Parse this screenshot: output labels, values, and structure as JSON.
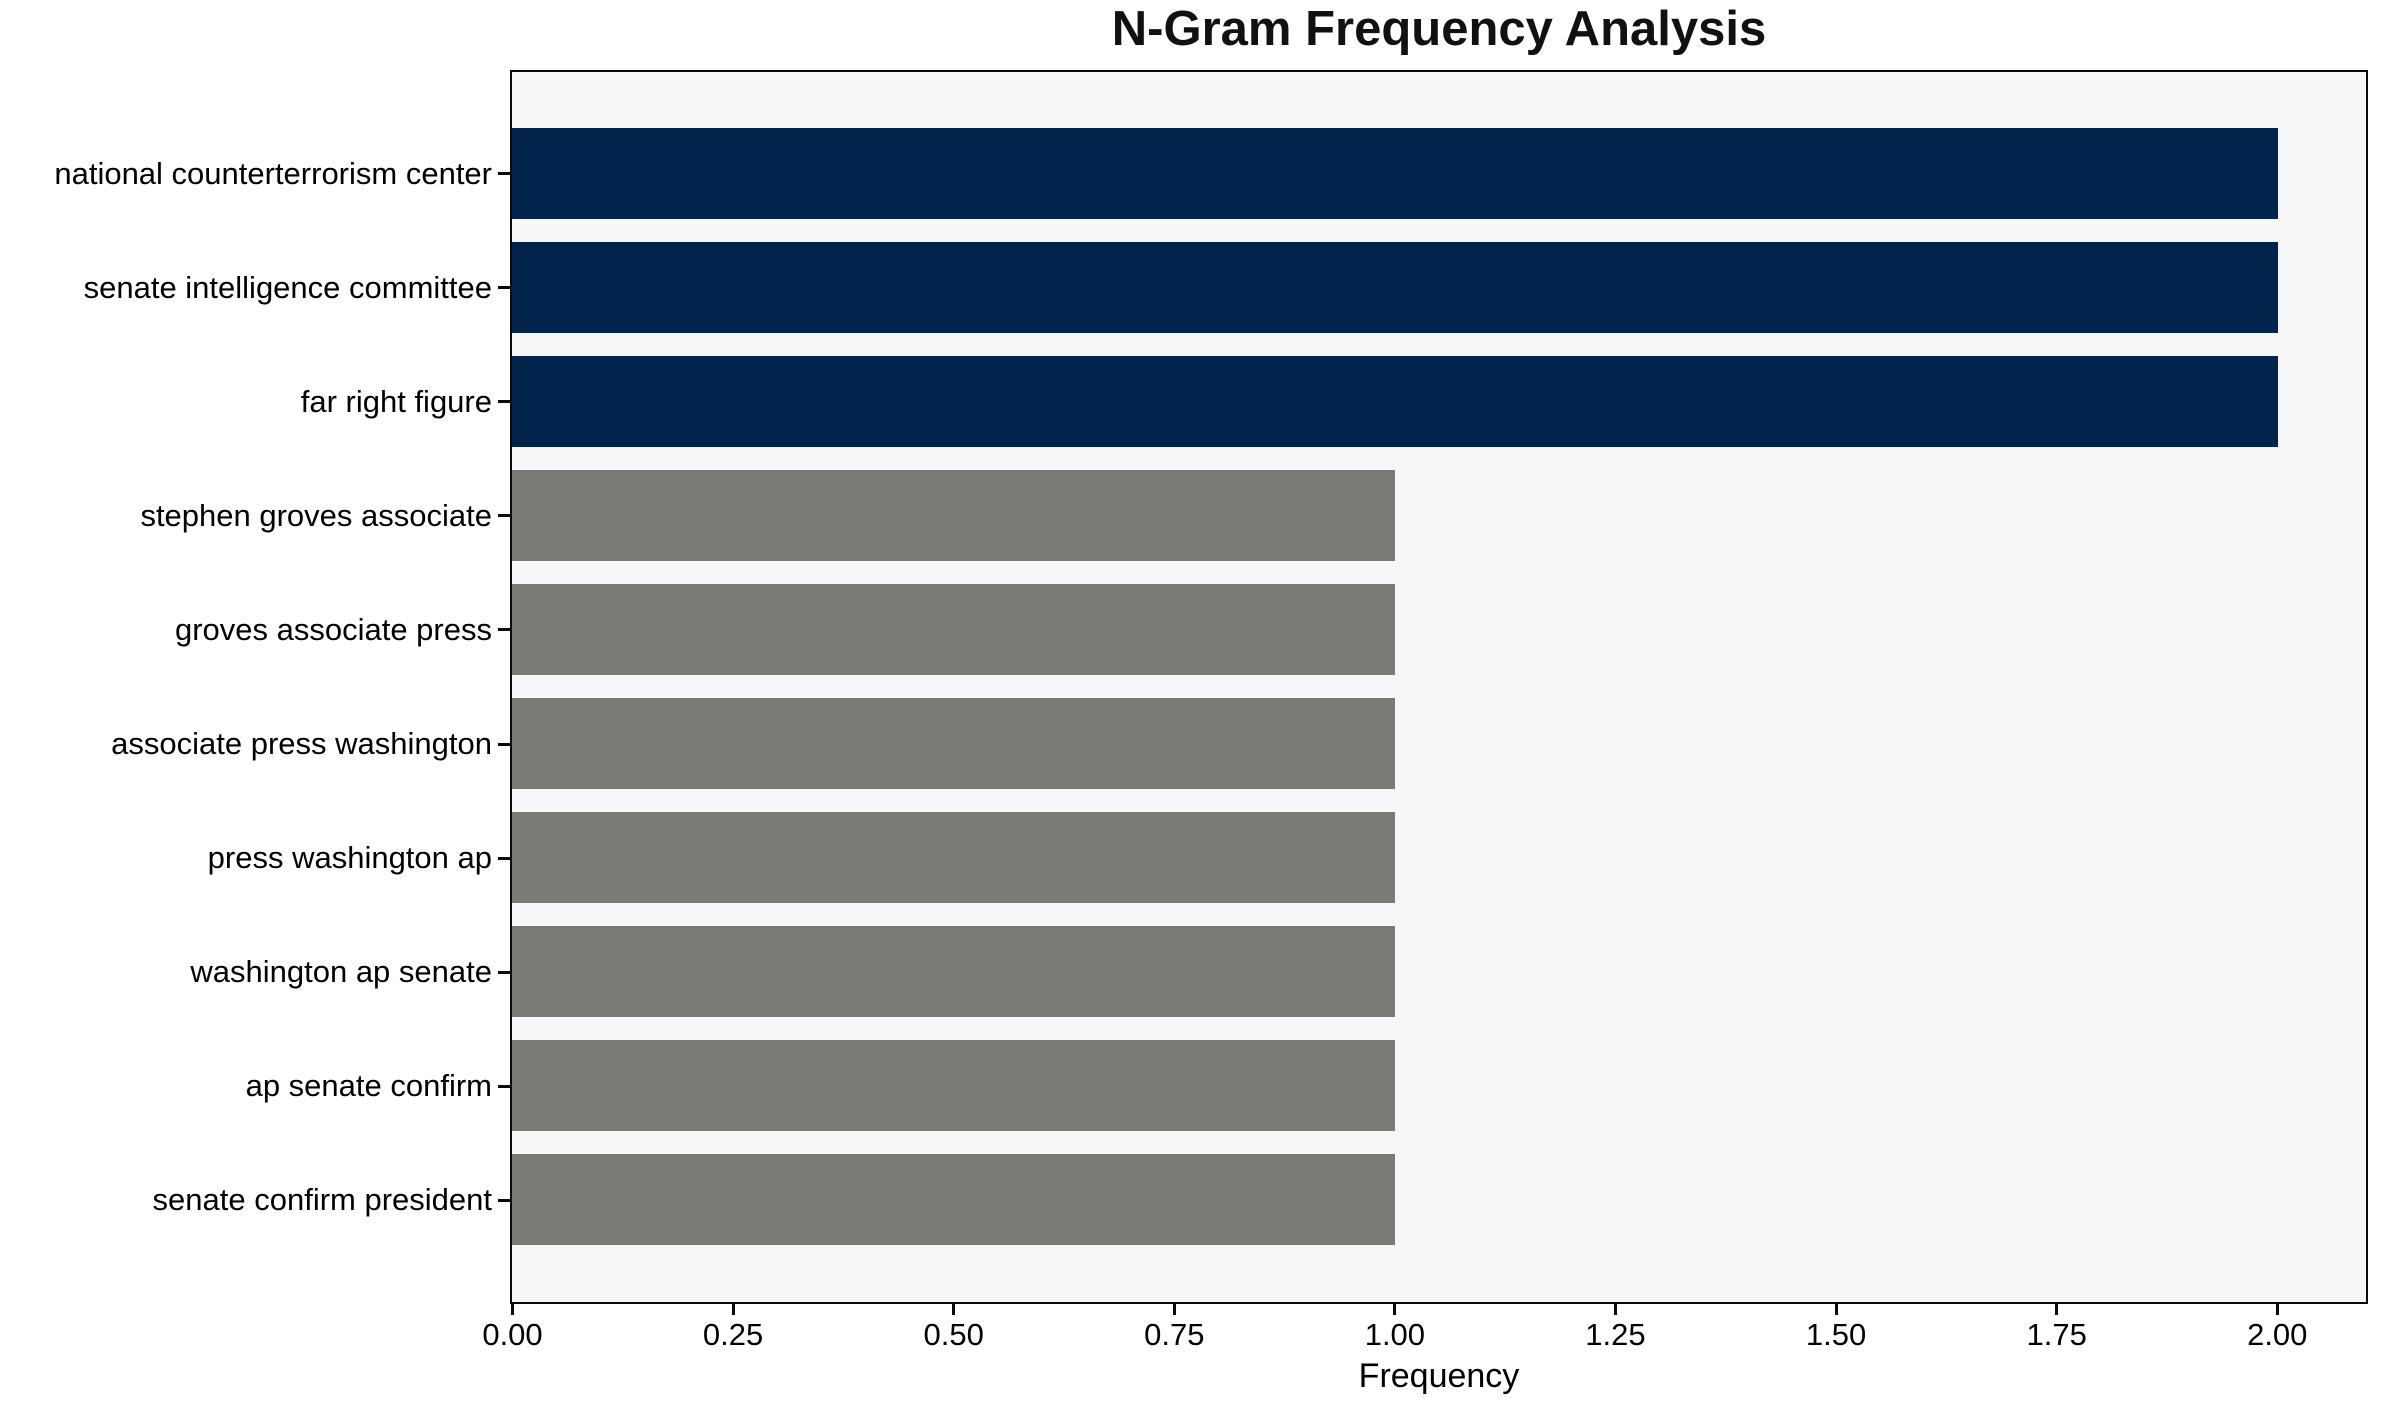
{
  "chart_data": {
    "type": "bar",
    "orientation": "horizontal",
    "title": "N-Gram Frequency Analysis",
    "xlabel": "Frequency",
    "ylabel": "",
    "categories": [
      "national counterterrorism center",
      "senate intelligence committee",
      "far right figure",
      "stephen groves associate",
      "groves associate press",
      "associate press washington",
      "press washington ap",
      "washington ap senate",
      "ap senate confirm",
      "senate confirm president"
    ],
    "values": [
      2,
      2,
      2,
      1,
      1,
      1,
      1,
      1,
      1,
      1
    ],
    "bar_colors": [
      "#02234c",
      "#02234c",
      "#02234c",
      "#7b7a77",
      "#7b7a77",
      "#7b7a77",
      "#7b7a77",
      "#7b7a77",
      "#7b7a77",
      "#7b7a77"
    ],
    "xlim": [
      0,
      2.1
    ],
    "x_tick_values": [
      0,
      0.25,
      0.5,
      0.75,
      1.0,
      1.25,
      1.5,
      1.75,
      2.0
    ],
    "x_tick_labels": [
      "0.00",
      "0.25",
      "0.50",
      "0.75",
      "1.00",
      "1.25",
      "1.50",
      "1.75",
      "2.00"
    ],
    "grid": false,
    "legend_position": "none",
    "bar_height_fraction": 0.8,
    "colors": {
      "bar_high": "#02234c",
      "bar_low": "#7b7a77",
      "plot_background": "#f7f7f7",
      "figure_background": "#ffffff",
      "spine": "#0a0a0a",
      "text": "#000000"
    }
  }
}
